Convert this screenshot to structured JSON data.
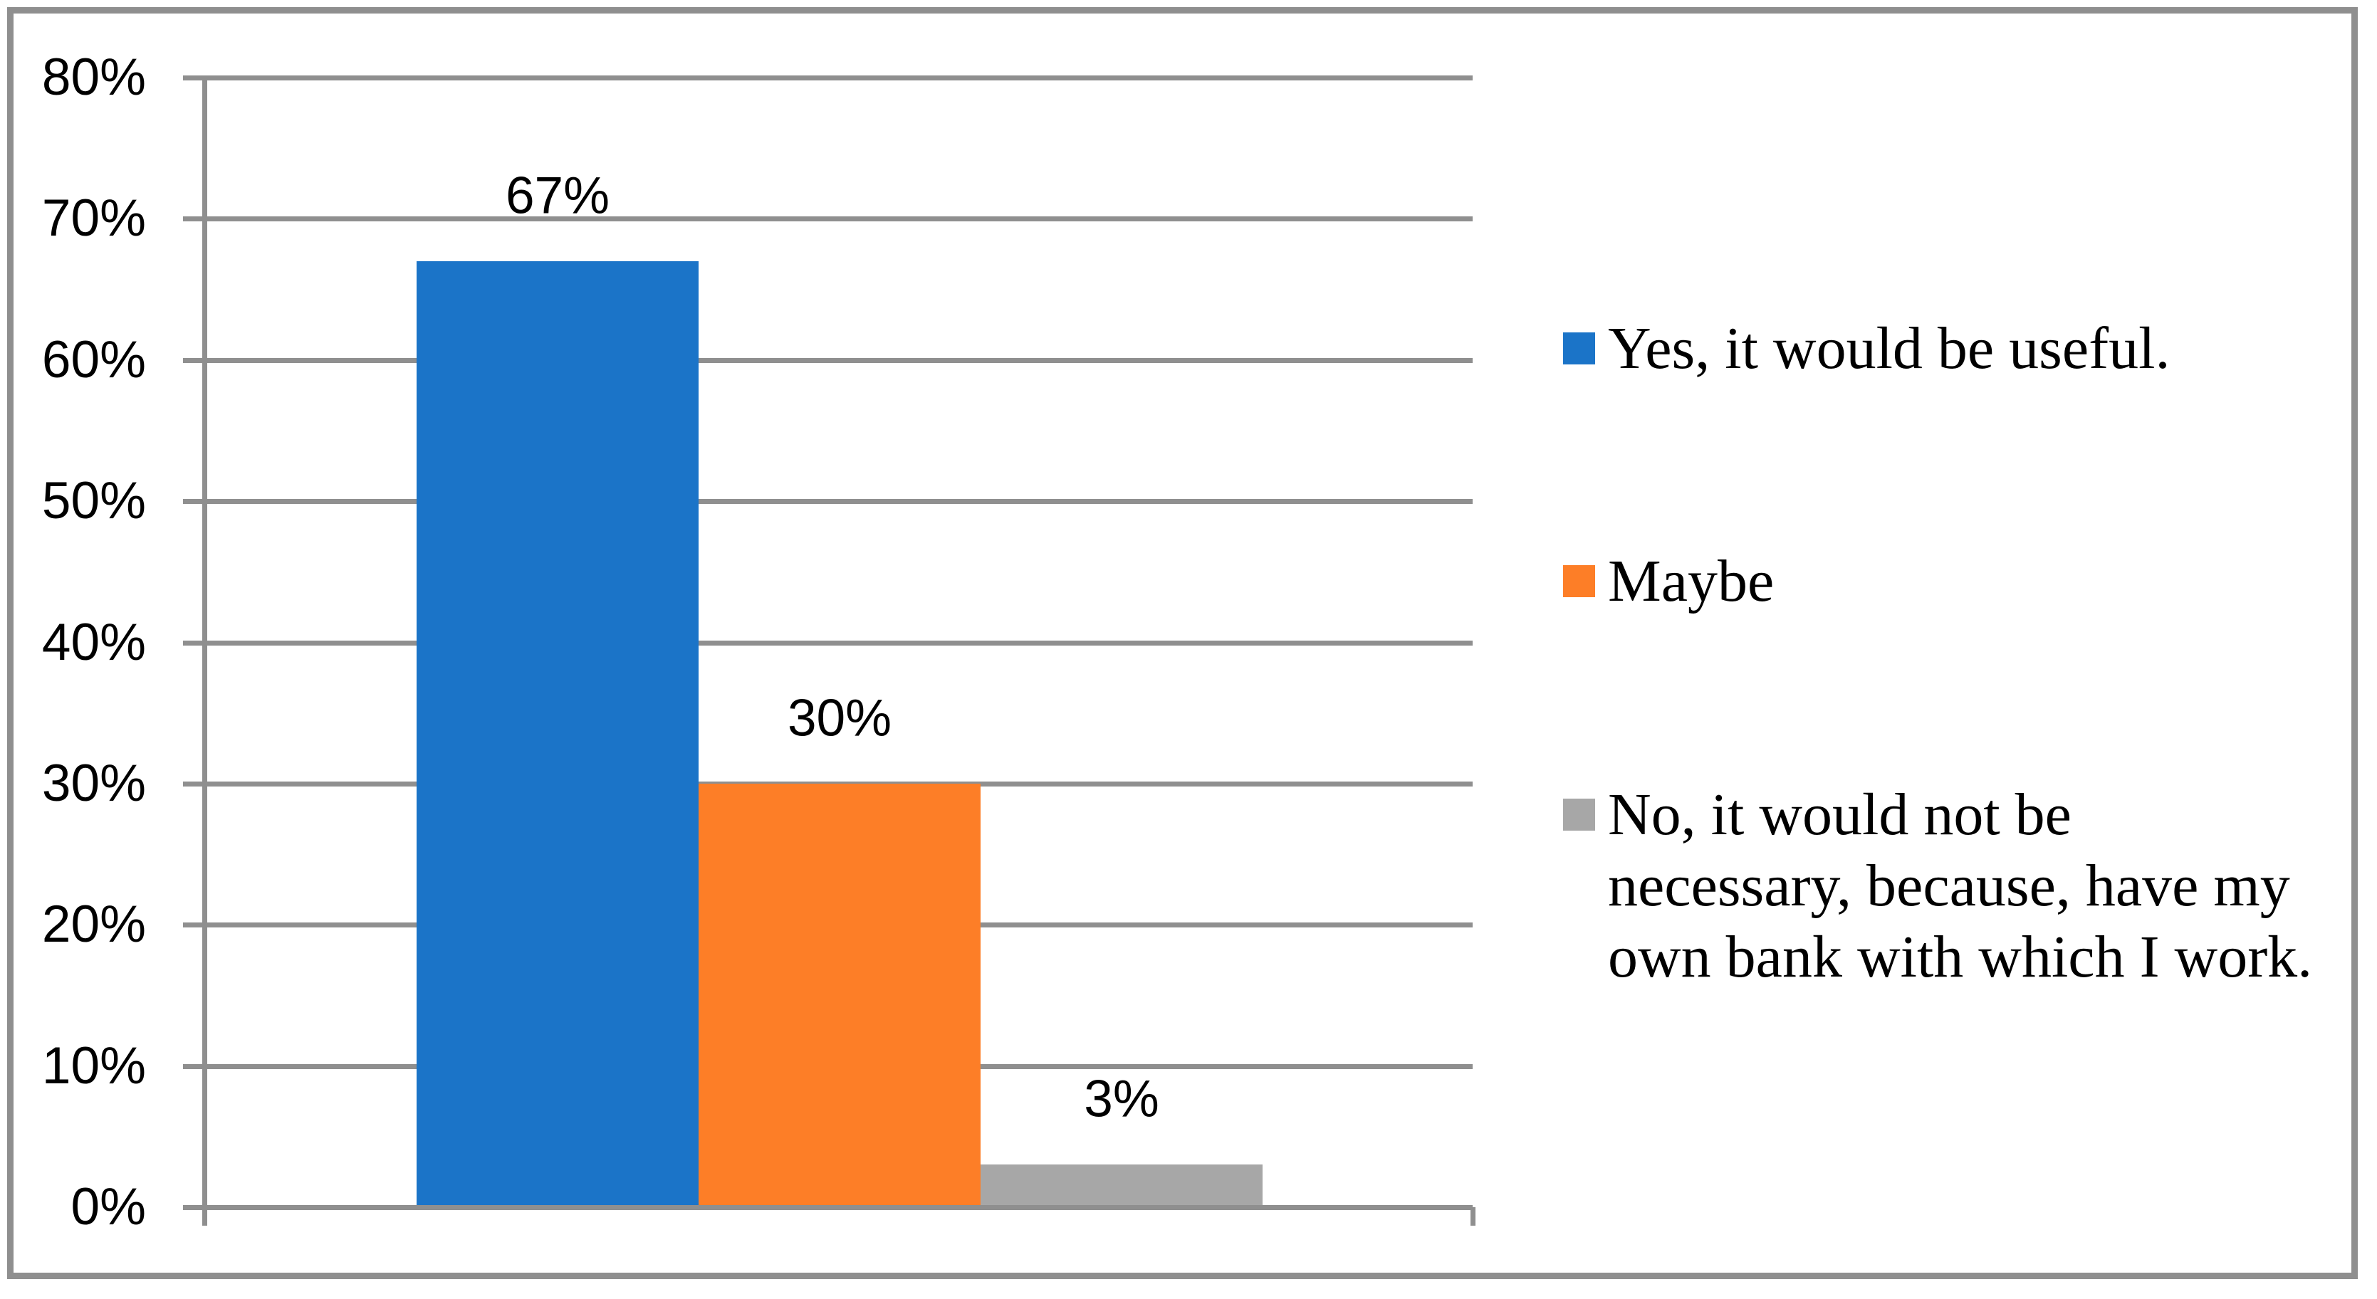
{
  "chart_data": {
    "type": "bar",
    "title": "",
    "categories": [
      "Yes, it would be useful.",
      "Maybe",
      "No, it would not be necessary, because, have my own bank with which I work."
    ],
    "values": [
      67,
      30,
      3
    ],
    "data_labels": [
      "67%",
      "30%",
      "3%"
    ],
    "series_colors": [
      "#1b74c8",
      "#fd7e27",
      "#a7a7a7"
    ],
    "ylabel": "",
    "xlabel": "",
    "ylim": [
      0,
      80
    ],
    "y_tick_step": 10,
    "y_tick_labels": [
      "0%",
      "10%",
      "20%",
      "30%",
      "40%",
      "50%",
      "60%",
      "70%",
      "80%"
    ],
    "grid": true,
    "gridline_color": "#8f8f8f",
    "border_color": "#8f8f8f",
    "background_color": "#ffffff",
    "legend_position": "right",
    "legend_entries": [
      "Yes, it would be useful.",
      "Maybe",
      "No, it would not be necessary, because, have my own bank with which I work."
    ]
  }
}
